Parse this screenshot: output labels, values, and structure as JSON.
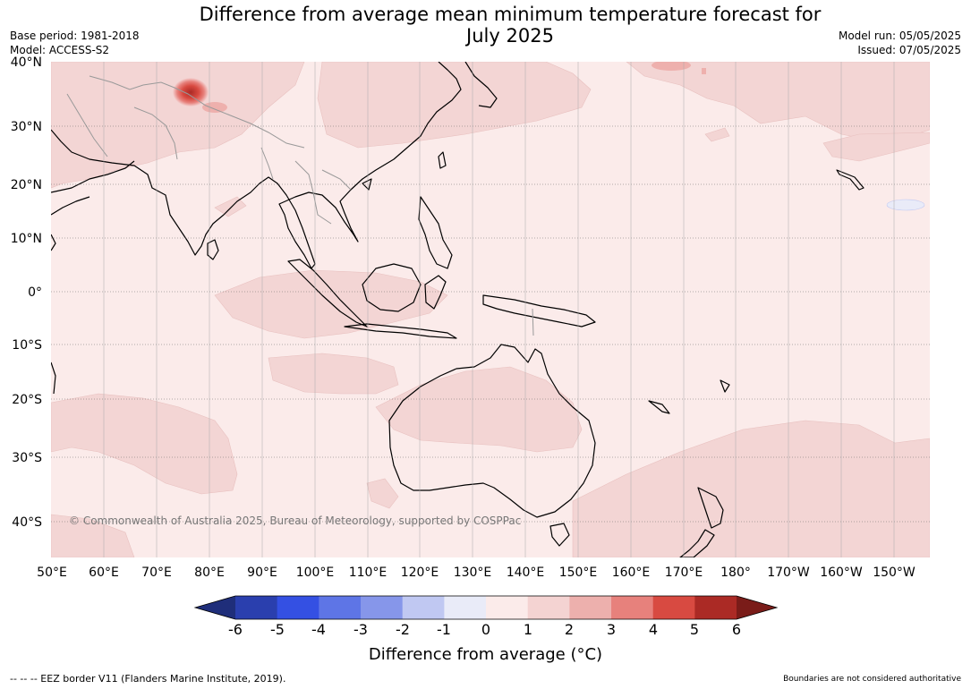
{
  "header": {
    "title_line1": "Difference from average mean minimum temperature forecast for",
    "title_line2": "July 2025",
    "base_period": "Base period: 1981-2018",
    "model": "Model: ACCESS-S2",
    "model_run": "Model run: 05/05/2025",
    "issued": "Issued: 07/05/2025"
  },
  "map": {
    "lat_labels": [
      "40°N",
      "30°N",
      "20°N",
      "10°N",
      "0°",
      "10°S",
      "20°S",
      "30°S",
      "40°S"
    ],
    "lon_labels": [
      "50°E",
      "60°E",
      "70°E",
      "80°E",
      "90°E",
      "100°E",
      "110°E",
      "120°E",
      "130°E",
      "140°E",
      "150°E",
      "160°E",
      "170°E",
      "180°",
      "170°W",
      "160°W",
      "150°W"
    ],
    "copyright": "© Commonwealth of Australia 2025, Bureau of Meteorology, supported by COSPPac",
    "colors": {
      "ocean_base": "#fbebea",
      "anomaly_1_2": "#f3d5d4",
      "anomaly_2_3": "#eeb0ad",
      "anomaly_3_4": "#e6827d",
      "anomaly_4_5": "#d84a41",
      "land_outline": "#000000",
      "border": "#999999"
    }
  },
  "colorbar": {
    "labels": [
      "-6",
      "-5",
      "-4",
      "-3",
      "-2",
      "-1",
      "0",
      "1",
      "2",
      "3",
      "4",
      "5",
      "6"
    ],
    "colors": [
      "#1f2e7a",
      "#2a3fae",
      "#3450e3",
      "#5e75e6",
      "#8696ea",
      "#c0c8f2",
      "#e9ebf8",
      "#fbebea",
      "#f4d3d2",
      "#edb0ad",
      "#e7817c",
      "#d84a41",
      "#ab2a25",
      "#7a1c19"
    ],
    "title": "Difference from average (°C)"
  },
  "footer": {
    "eez_note": "--  --  -- EEZ border V11 (Flanders Marine Institute, 2019).",
    "disclaimer": "Boundaries are not considered authoritative"
  }
}
